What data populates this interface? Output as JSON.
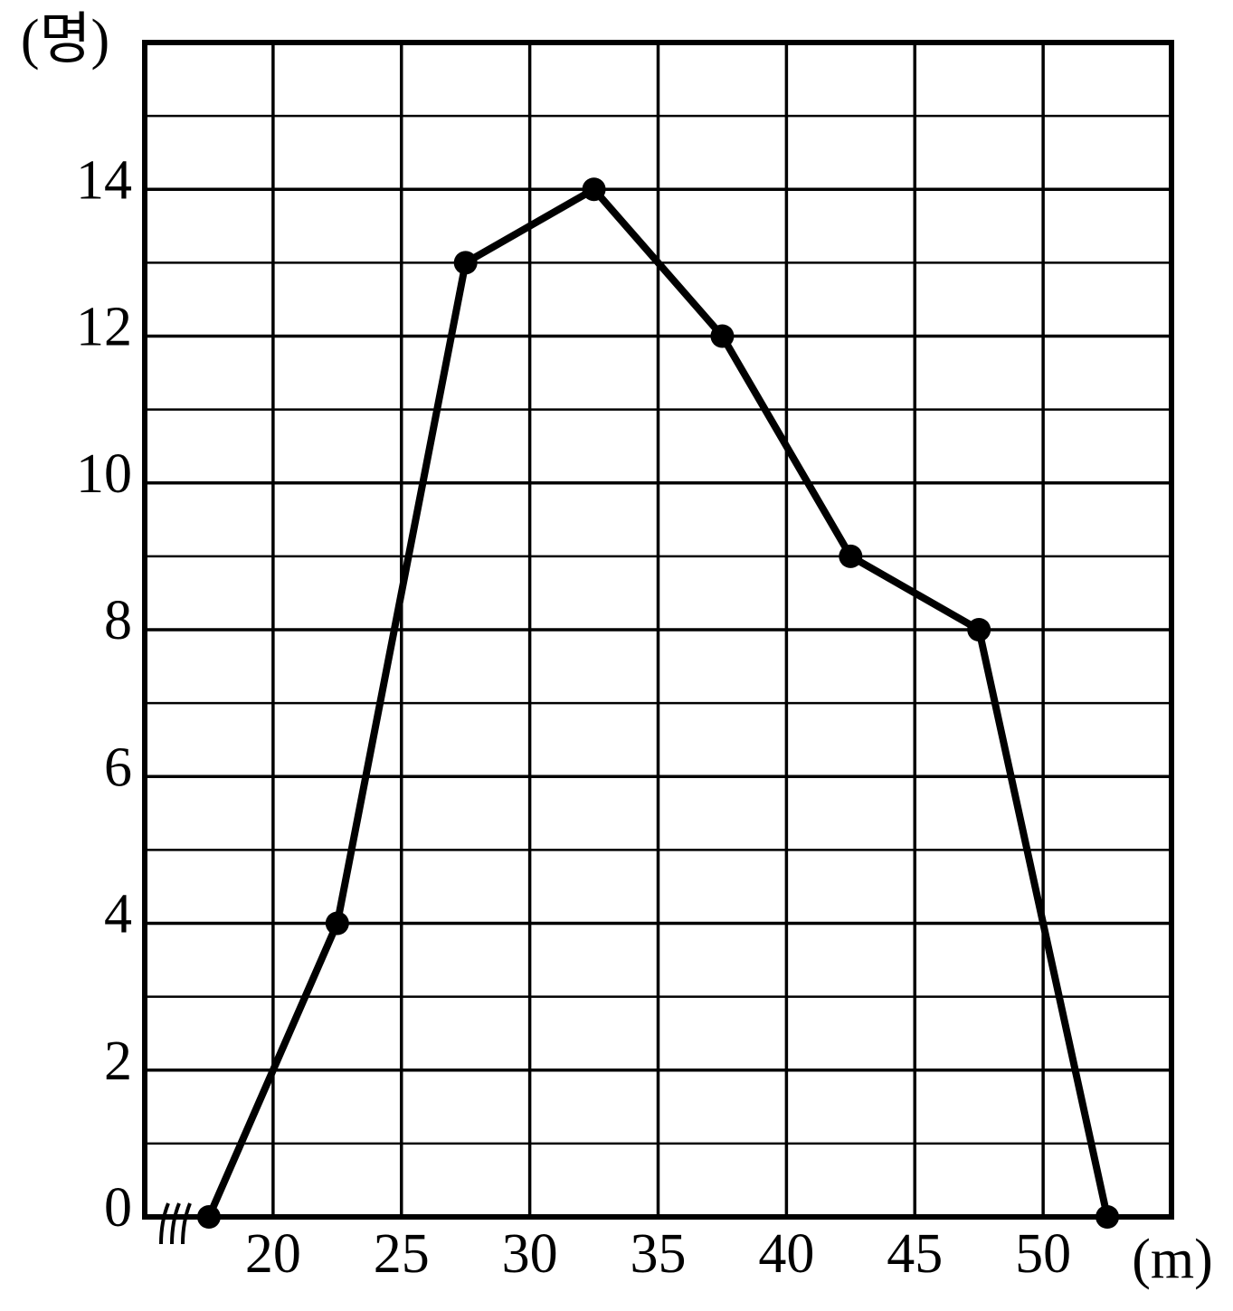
{
  "chart_data": {
    "type": "line",
    "y_unit": "(명)",
    "x_unit": "(m)",
    "x": [
      17.5,
      22.5,
      27.5,
      32.5,
      37.5,
      42.5,
      47.5,
      52.5
    ],
    "values": [
      0,
      4,
      13,
      14,
      12,
      9,
      8,
      0
    ],
    "color": "#000000",
    "xlim": [
      15,
      55
    ],
    "xticks": [
      20,
      25,
      30,
      35,
      40,
      45,
      50
    ],
    "ylim": [
      0,
      16
    ],
    "yticks": [
      0,
      2,
      4,
      6,
      8,
      10,
      12,
      14
    ],
    "minor_yticks": [
      1,
      3,
      5,
      7,
      9,
      11,
      13,
      15
    ],
    "grid": true,
    "axis_break": true
  }
}
